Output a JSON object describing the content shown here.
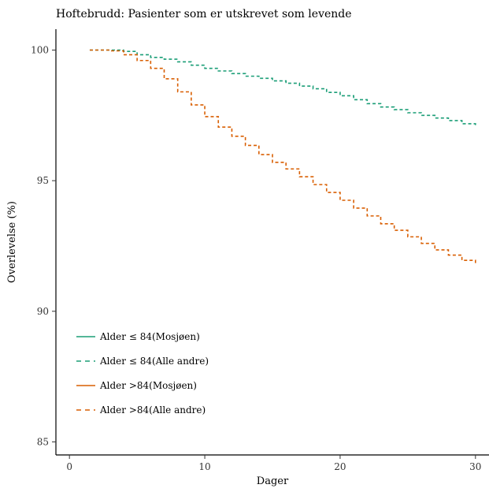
{
  "chart_data": {
    "type": "line",
    "title": "Hoftebrudd: Pasienter som er utskrevet som levende",
    "xlabel": "Dager",
    "ylabel": "Overlevelse (%)",
    "xlim": [
      -1,
      31
    ],
    "ylim": [
      84.5,
      100.8
    ],
    "xticks": [
      0,
      10,
      20,
      30
    ],
    "yticks": [
      85,
      90,
      95,
      100
    ],
    "grid": false,
    "legend_position": "bottom-left",
    "series": [
      {
        "name": "Alder ≤ 84(Mosjøen)",
        "color": "#1b9e77",
        "dash": "solid",
        "x": [],
        "y": []
      },
      {
        "name": "Alder ≤ 84(Alle andre)",
        "color": "#1b9e77",
        "dash": "dashed",
        "x": [
          1.5,
          3,
          4,
          5,
          6,
          7,
          8,
          9,
          10,
          11,
          12,
          13,
          14,
          15,
          16,
          17,
          18,
          19,
          20,
          21,
          22,
          23,
          24,
          25,
          26,
          27,
          28,
          29,
          30
        ],
        "y": [
          100,
          100,
          99.95,
          99.82,
          99.72,
          99.65,
          99.55,
          99.42,
          99.3,
          99.2,
          99.1,
          99.0,
          98.92,
          98.82,
          98.73,
          98.62,
          98.52,
          98.38,
          98.25,
          98.1,
          97.95,
          97.82,
          97.72,
          97.6,
          97.5,
          97.4,
          97.3,
          97.18,
          97.08
        ]
      },
      {
        "name": "Alder >84(Mosjøen)",
        "color": "#d95f02",
        "dash": "solid",
        "x": [],
        "y": []
      },
      {
        "name": "Alder >84(Alle andre)",
        "color": "#d95f02",
        "dash": "dashed",
        "x": [
          1.5,
          3,
          4,
          5,
          6,
          7,
          8,
          9,
          10,
          11,
          12,
          13,
          14,
          15,
          16,
          17,
          18,
          19,
          20,
          21,
          22,
          23,
          24,
          25,
          26,
          27,
          28,
          29,
          30
        ],
        "y": [
          100,
          99.97,
          99.82,
          99.6,
          99.3,
          98.9,
          98.4,
          97.9,
          97.45,
          97.05,
          96.7,
          96.35,
          96.0,
          95.7,
          95.45,
          95.15,
          94.85,
          94.55,
          94.25,
          93.95,
          93.65,
          93.35,
          93.1,
          92.85,
          92.6,
          92.35,
          92.15,
          91.95,
          91.8
        ]
      }
    ]
  }
}
